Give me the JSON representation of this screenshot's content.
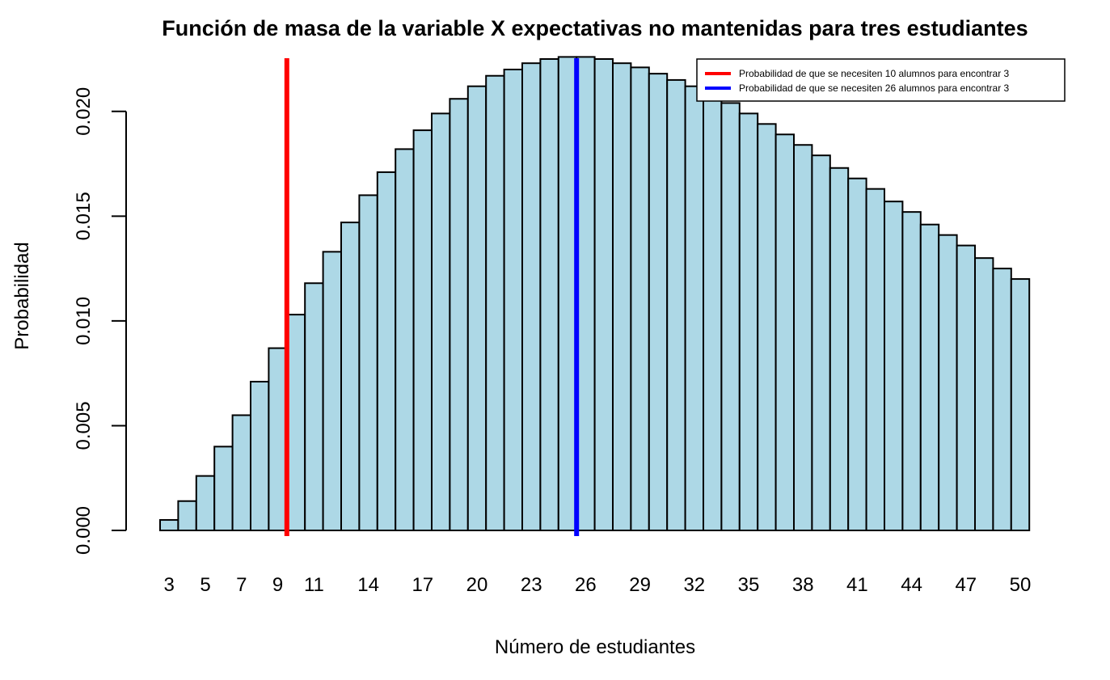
{
  "chart_data": {
    "type": "bar",
    "title": "Función de masa  de la variable X expectativas no mantenidas para tres estudiantes",
    "xlabel": "Número de estudiantes",
    "ylabel": "Probabilidad",
    "categories": [
      3,
      4,
      5,
      6,
      7,
      8,
      9,
      10,
      11,
      12,
      13,
      14,
      15,
      16,
      17,
      18,
      19,
      20,
      21,
      22,
      23,
      24,
      25,
      26,
      27,
      28,
      29,
      30,
      31,
      32,
      33,
      34,
      35,
      36,
      37,
      38,
      39,
      40,
      41,
      42,
      43,
      44,
      45,
      46,
      47,
      48,
      49,
      50
    ],
    "x_tick_labels": [
      "3",
      "5",
      "7",
      "9",
      "11",
      "14",
      "17",
      "20",
      "23",
      "26",
      "29",
      "32",
      "35",
      "38",
      "41",
      "44",
      "47",
      "50"
    ],
    "values": [
      0.0005,
      0.0014,
      0.0026,
      0.004,
      0.0055,
      0.0071,
      0.0087,
      0.0103,
      0.0118,
      0.0133,
      0.0147,
      0.016,
      0.0171,
      0.0182,
      0.0191,
      0.0199,
      0.0206,
      0.0212,
      0.0217,
      0.022,
      0.0223,
      0.0225,
      0.0226,
      0.0226,
      0.0225,
      0.0223,
      0.0221,
      0.0218,
      0.0215,
      0.0212,
      0.0208,
      0.0204,
      0.0199,
      0.0194,
      0.0189,
      0.0184,
      0.0179,
      0.0173,
      0.0168,
      0.0163,
      0.0157,
      0.0152,
      0.0146,
      0.0141,
      0.0136,
      0.013,
      0.0125,
      0.012
    ],
    "ylim": [
      0,
      0.0225
    ],
    "y_ticks": [
      0.0,
      0.005,
      0.01,
      0.015,
      0.02
    ],
    "y_tick_labels": [
      "0.000",
      "0.005",
      "0.010",
      "0.015",
      "0.020"
    ],
    "bar_color": "#add8e6",
    "vertical_lines": [
      {
        "x": 10,
        "color": "#ff0000",
        "label": "Probabilidad de que se necesiten 10 alumnos para encontrar 3"
      },
      {
        "x": 26,
        "color": "#0000ff",
        "label": "Probabilidad de que se necesiten 26 alumnos para encontrar 3"
      }
    ],
    "legend_position": "top-right",
    "grid": false
  }
}
